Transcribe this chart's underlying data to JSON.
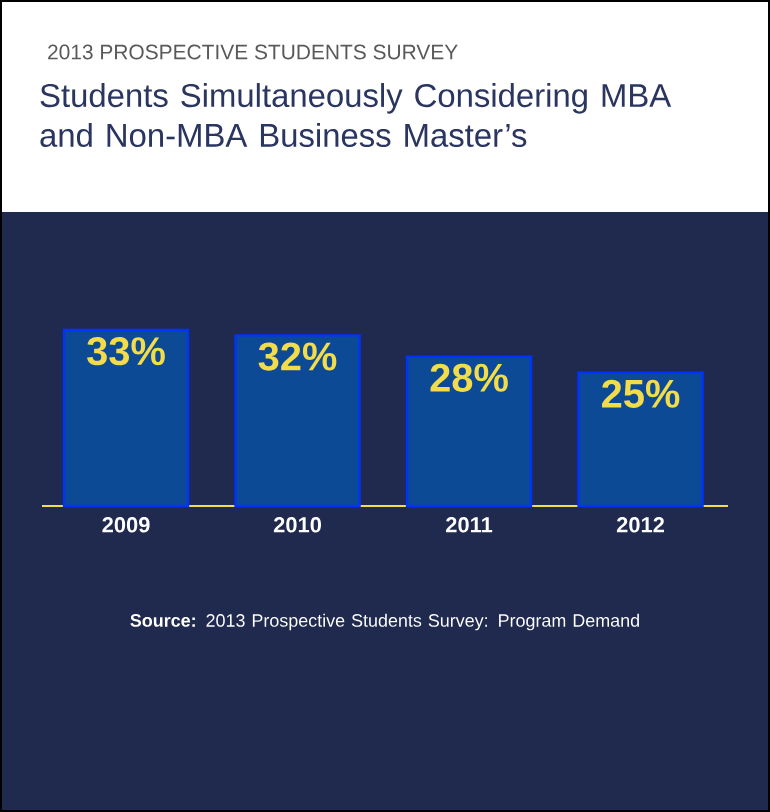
{
  "chart_data": {
    "type": "bar",
    "subtitle": "2013 PROSPECTIVE STUDENTS SURVEY",
    "title": "Students Simultaneously Considering MBA and Non-MBA Business Master’s",
    "categories": [
      "2009",
      "2010",
      "2011",
      "2012"
    ],
    "values": [
      33,
      32,
      28,
      25
    ],
    "value_labels": [
      "33%",
      "32%",
      "28%",
      "25%"
    ],
    "color": "#0d4a96",
    "ylim": [
      0,
      33
    ],
    "annotations": [
      "**Source:** 2013 Prospective Students Survey: Program Demand"
    ]
  }
}
